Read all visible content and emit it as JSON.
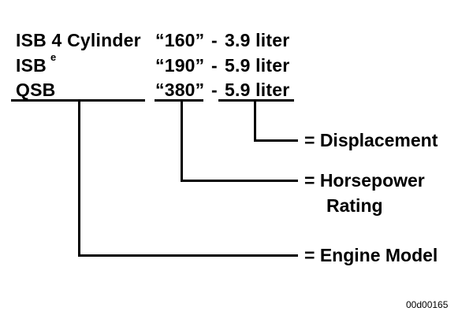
{
  "engines": [
    {
      "model": "ISB 4 Cylinder",
      "rating": "“160”",
      "separator": "-",
      "displacement": "3.9 liter"
    },
    {
      "model": "ISB",
      "model_superscript": "e",
      "rating": "“190”",
      "separator": "-",
      "displacement": "5.9 liter"
    },
    {
      "model": "QSB",
      "rating": "“380”",
      "separator": "-",
      "displacement": "5.9 liter"
    }
  ],
  "legend": {
    "displacement": "=  Displacement",
    "horsepower_line1": "=  Horsepower",
    "horsepower_line2": "Rating",
    "engine_model": "=  Engine Model"
  },
  "figure_code": "00d00165"
}
